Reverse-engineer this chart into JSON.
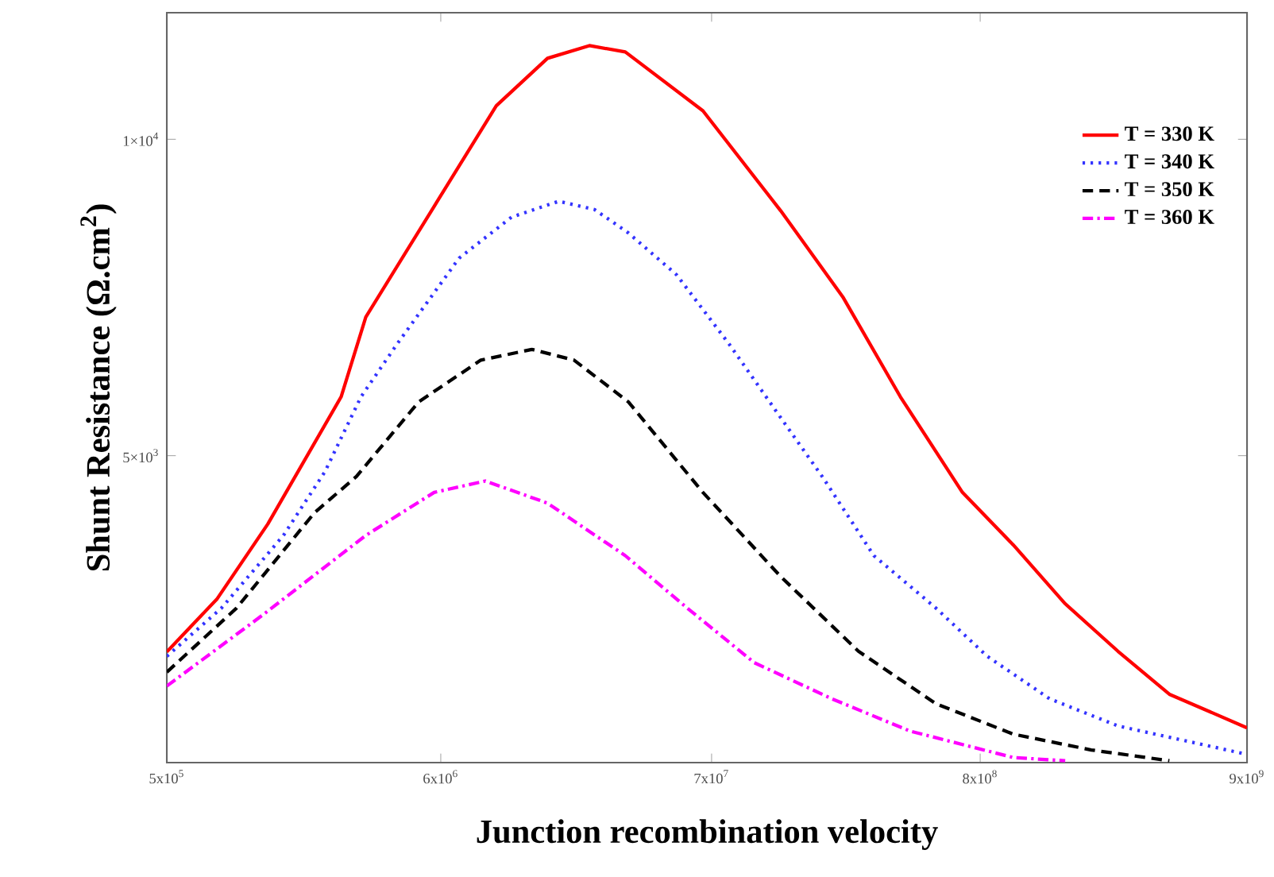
{
  "chart_data": {
    "type": "line",
    "xlabel": "Junction recombination velocity",
    "ylabel": "Shunt Resistance (Ω.cm$^{2}$)",
    "log": "x",
    "xlim": [
      500000,
      9000000000
    ],
    "xticks": [
      {
        "value": 500000,
        "label": "5x10$^{5}$"
      },
      {
        "value": 6000000,
        "label": "6x10$^{6}$"
      },
      {
        "value": 70000000,
        "label": "7x10$^{7}$"
      },
      {
        "value": 800000000,
        "label": "8x10$^{8}$"
      },
      {
        "value": 9000000000,
        "label": "9x10$^{9}$"
      }
    ],
    "ylim": [
      150,
      12000
    ],
    "yticks": [
      {
        "value": 5000,
        "label": "5×10$^{3}$"
      },
      {
        "value": 10000,
        "label": "1×10$^{4}$"
      }
    ],
    "legend": "top right",
    "grid": false,
    "series": [
      {
        "name": "T = 330 K",
        "color": "#ff0000",
        "line_style": "solid",
        "x": [
          500000.0,
          790000.0,
          1250000.0,
          2430000.0,
          3040000.0,
          5650000.0,
          9930000.0,
          15800000.0,
          23100000.0,
          32000000.0,
          64700000.0,
          131000000.0,
          230000000.0,
          388000000.0,
          681000000.0,
          1080000000.0,
          1730000000.0,
          2790000000.0,
          4450000000.0,
          9000000000.0
        ],
        "values": [
          1900,
          2740,
          3920,
          5930,
          7190,
          8940,
          10530,
          11280,
          11480,
          11380,
          10450,
          8870,
          7510,
          5930,
          4420,
          3590,
          2660,
          1910,
          1230,
          700
        ]
      },
      {
        "name": "T = 340 K",
        "color": "#3333ff",
        "line_style": "dotted",
        "x": [
          500000.0,
          820000.0,
          1440000.0,
          2100000.0,
          2910000.0,
          4030000.0,
          7080000.0,
          11400000.0,
          17500000.0,
          24200000.0,
          32900000.0,
          50900000.0,
          82200000.0,
          131000000.0,
          191000000.0,
          305000000.0,
          536000000.0,
          853000000.0,
          1500000000.0,
          2790000000.0,
          9000000000.0
        ],
        "values": [
          1830,
          2590,
          3740,
          4750,
          5930,
          6760,
          8120,
          8770,
          9020,
          8890,
          8520,
          7860,
          6760,
          5600,
          4670,
          3420,
          2590,
          1830,
          1160,
          730,
          280
        ]
      },
      {
        "name": "T = 350 K",
        "color": "#000000",
        "line_style": "dashed",
        "x": [
          500000.0,
          940000.0,
          1910000.0,
          2790000.0,
          4910000.0,
          8630000.0,
          13700000.0,
          20100000.0,
          32900000.0,
          64700000.0,
          131000000.0,
          265000000.0,
          536000000.0,
          1080000000.0,
          2190000000.0,
          4450000000.0
        ],
        "values": [
          1580,
          2590,
          4100,
          4670,
          5850,
          6510,
          6680,
          6510,
          5850,
          4420,
          3090,
          1910,
          1080,
          600,
          350,
          180
        ]
      },
      {
        "name": "T = 360 K",
        "color": "#ff00ff",
        "line_style": "dashdot",
        "x": [
          500000.0,
          1200000.0,
          3040000.0,
          5650000.0,
          8990000.0,
          15800000.0,
          32000000.0,
          56200000.0,
          103000000.0,
          208000000.0,
          422000000.0,
          1080000000.0,
          1730000000.0
        ],
        "values": [
          1360,
          2490,
          3740,
          4420,
          4600,
          4250,
          3420,
          2590,
          1730,
          1160,
          650,
          230,
          180
        ]
      }
    ]
  }
}
